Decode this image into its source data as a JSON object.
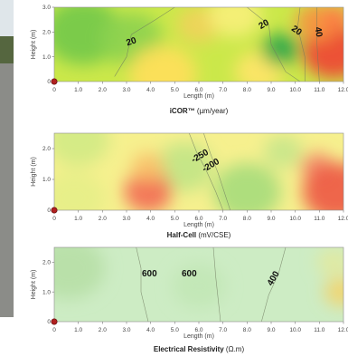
{
  "photo": {
    "sky": "#dfe6ea",
    "tree": "#55663f",
    "ground": "#8b8c88"
  },
  "chart_data": [
    {
      "type": "heatmap",
      "title": "iCOR™",
      "unit": "(µm/year)",
      "xlabel": "Length (m)",
      "ylabel": "Height (m)",
      "xlim": [
        0,
        12
      ],
      "ylim": [
        0,
        3
      ],
      "x_ticks": [
        "0",
        "1.0",
        "2.0",
        "3.0",
        "4.0",
        "5.0",
        "6.0",
        "7.0",
        "8.0",
        "9.0",
        "10.0",
        "11.0",
        "12.0"
      ],
      "y_ticks": [
        "0",
        "1.0",
        "2.0",
        "3.0"
      ],
      "base_color": "#cbe84a",
      "blobs": [
        {
          "x": 1.2,
          "y": 2.0,
          "r": 1.6,
          "color": "#74c94a"
        },
        {
          "x": 3.2,
          "y": 1.7,
          "r": 1.3,
          "color": "#8ed24f"
        },
        {
          "x": 6.0,
          "y": 2.3,
          "r": 0.9,
          "color": "#f0d35a"
        },
        {
          "x": 4.5,
          "y": 0.3,
          "r": 1.4,
          "color": "#ffe05a"
        },
        {
          "x": 8.5,
          "y": 0.4,
          "r": 1.0,
          "color": "#ffe568"
        },
        {
          "x": 7.5,
          "y": 2.7,
          "r": 1.1,
          "color": "#f7f07a"
        },
        {
          "x": 9.4,
          "y": 1.3,
          "r": 0.8,
          "color": "#2fa84a"
        },
        {
          "x": 11.6,
          "y": 1.2,
          "r": 1.3,
          "color": "#ef4534"
        },
        {
          "x": 10.9,
          "y": 2.4,
          "r": 0.9,
          "color": "#f5943f"
        },
        {
          "x": 11.7,
          "y": 2.6,
          "r": 0.6,
          "color": "#ff7a45"
        }
      ],
      "contours": [
        {
          "d": [
            [
              2.5,
              0.2
            ],
            [
              3.0,
              1.0
            ],
            [
              3.2,
              1.9
            ],
            [
              4.2,
              2.5
            ],
            [
              5.0,
              3.0
            ]
          ],
          "label": "20",
          "lx": 3.2,
          "ly": 1.6,
          "rot": -18
        },
        {
          "d": [
            [
              8.0,
              3.0
            ],
            [
              8.9,
              2.3
            ],
            [
              9.0,
              1.5
            ],
            [
              9.6,
              0.4
            ],
            [
              10.2,
              0.0
            ]
          ],
          "label": "20",
          "lx": 8.7,
          "ly": 2.3,
          "rot": -30
        },
        {
          "d": [
            [
              10.2,
              3.0
            ],
            [
              10.1,
              2.2
            ],
            [
              10.4,
              1.0
            ],
            [
              10.4,
              0.0
            ]
          ],
          "label": "20",
          "lx": 10.05,
          "ly": 2.05,
          "rot": 35
        },
        {
          "d": [
            [
              10.9,
              3.0
            ],
            [
              10.9,
              1.5
            ],
            [
              11.0,
              0.0
            ]
          ],
          "label": "40",
          "lx": 10.95,
          "ly": 2.0,
          "rot": 80
        }
      ]
    },
    {
      "type": "heatmap",
      "title": "Half-Cell",
      "unit": "(mV/CSE)",
      "xlabel": "Length (m)",
      "ylabel": "Height (m)",
      "xlim": [
        0,
        12
      ],
      "ylim": [
        0,
        2.5
      ],
      "x_ticks": [
        "0",
        "1.0",
        "2.0",
        "3.0",
        "4.0",
        "5.0",
        "6.0",
        "7.0",
        "8.0",
        "9.0",
        "10.0",
        "11.0",
        "12.0"
      ],
      "y_ticks": [
        "0",
        "1.0",
        "2.0"
      ],
      "base_color": "#f6f08e",
      "blobs": [
        {
          "x": 1.0,
          "y": 2.3,
          "r": 1.3,
          "color": "#d2ea84"
        },
        {
          "x": 0.8,
          "y": 0.4,
          "r": 1.3,
          "color": "#e6ef88"
        },
        {
          "x": 5.4,
          "y": 1.4,
          "r": 1.2,
          "color": "#c2e586"
        },
        {
          "x": 8.0,
          "y": 0.6,
          "r": 1.4,
          "color": "#a8dc7c"
        },
        {
          "x": 3.9,
          "y": 0.6,
          "r": 1.0,
          "color": "#f26d55"
        },
        {
          "x": 3.9,
          "y": 1.4,
          "r": 0.7,
          "color": "#f9c06a"
        },
        {
          "x": 10.9,
          "y": 1.4,
          "r": 0.7,
          "color": "#f28a6a"
        },
        {
          "x": 11.7,
          "y": 0.6,
          "r": 1.4,
          "color": "#ee5a44"
        },
        {
          "x": 9.5,
          "y": 1.9,
          "r": 0.8,
          "color": "#c7e68a"
        }
      ],
      "contours": [
        {
          "d": [
            [
              5.6,
              2.5
            ],
            [
              5.9,
              1.9
            ],
            [
              6.3,
              1.3
            ],
            [
              6.7,
              0.6
            ],
            [
              7.0,
              0.0
            ]
          ],
          "label": "-250",
          "lx": 6.05,
          "ly": 1.75,
          "rot": -30
        },
        {
          "d": [
            [
              6.2,
              2.5
            ],
            [
              6.5,
              1.8
            ],
            [
              6.8,
              1.2
            ],
            [
              7.3,
              0.0
            ]
          ],
          "label": "-200",
          "lx": 6.5,
          "ly": 1.45,
          "rot": -30
        }
      ]
    },
    {
      "type": "heatmap",
      "title": "Electrical Resistivity",
      "unit": "(Ω.m)",
      "xlabel": "Length (m)",
      "ylabel": "Height (m)",
      "xlim": [
        0,
        12
      ],
      "ylim": [
        0,
        2.5
      ],
      "x_ticks": [
        "0",
        "1.0",
        "2.0",
        "3.0",
        "4.0",
        "5.0",
        "6.0",
        "7.0",
        "8.0",
        "9.0",
        "10.0",
        "11.0",
        "12.0"
      ],
      "y_ticks": [
        "0",
        "1.0",
        "2.0"
      ],
      "base_color": "#cdecc4",
      "blobs": [
        {
          "x": 0.6,
          "y": 1.8,
          "r": 1.5,
          "color": "#b7e0a7"
        },
        {
          "x": 6.0,
          "y": 1.2,
          "r": 1.1,
          "color": "#c2e7b6"
        },
        {
          "x": 11.9,
          "y": 1.0,
          "r": 0.7,
          "color": "#f2d46e"
        },
        {
          "x": 11.6,
          "y": 2.0,
          "r": 0.7,
          "color": "#e2e9a0"
        }
      ],
      "contours": [
        {
          "d": [
            [
              3.4,
              2.5
            ],
            [
              3.6,
              1.8
            ],
            [
              3.6,
              1.0
            ],
            [
              3.9,
              0.0
            ]
          ],
          "label": "600",
          "lx": 3.95,
          "ly": 1.6,
          "rot": 0
        },
        {
          "d": [
            [
              6.6,
              2.5
            ],
            [
              6.7,
              1.5
            ],
            [
              6.9,
              0.0
            ]
          ],
          "label": "600",
          "lx": 5.6,
          "ly": 1.6,
          "rot": 0
        },
        {
          "d": [
            [
              9.6,
              2.5
            ],
            [
              9.3,
              1.6
            ],
            [
              8.9,
              0.9
            ],
            [
              8.6,
              0.0
            ]
          ],
          "label": "400",
          "lx": 9.1,
          "ly": 1.45,
          "rot": -60
        }
      ]
    }
  ]
}
